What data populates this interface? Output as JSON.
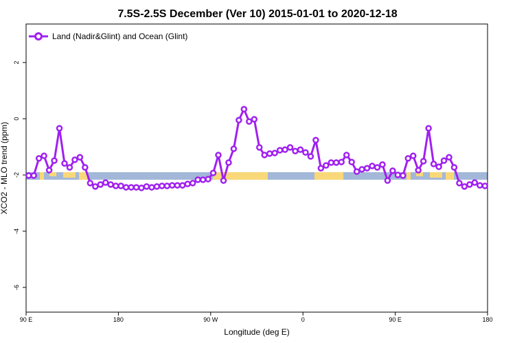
{
  "chart_data": {
    "type": "line",
    "title": "7.5S-2.5S December (Ver 10)   2015-01-01 to 2020-12-18",
    "x_label": "Longitude (deg E)",
    "y_label": "XCO2 - MLO trend (ppm)",
    "xlim": [
      90,
      540
    ],
    "ylim": [
      -6.88,
      3.37
    ],
    "xticks": [
      {
        "value": 90,
        "label": "90 E"
      },
      180,
      {
        "value": 270,
        "label": "90 W"
      },
      {
        "value": 360,
        "label": "0"
      },
      {
        "value": 450,
        "label": "90 E"
      },
      {
        "value": 540,
        "label": "180"
      }
    ],
    "yticks": [
      -6,
      -4,
      -2,
      0,
      2
    ],
    "legend": "top-left",
    "x": [
      92.5,
      97.5,
      102.5,
      107.5,
      112.5,
      117.5,
      122.5,
      127.5,
      132.5,
      137.5,
      142.5,
      147.5,
      152.5,
      157.5,
      162.5,
      167.5,
      172.5,
      177.5,
      182.5,
      187.5,
      192.5,
      197.5,
      202.5,
      207.5,
      212.5,
      217.5,
      222.5,
      227.5,
      232.5,
      237.5,
      242.5,
      247.5,
      252.5,
      257.5,
      262.5,
      267.5,
      272.5,
      277.5,
      282.5,
      287.5,
      292.5,
      297.5,
      302.5,
      307.5,
      312.5,
      317.5,
      322.5,
      327.5,
      332.5,
      337.5,
      342.5,
      347.5,
      352.5,
      357.5,
      362.5,
      367.5,
      372.5,
      377.5,
      382.5,
      387.5,
      392.5,
      397.5,
      402.5,
      407.5,
      412.5,
      417.5,
      422.5,
      427.5,
      432.5,
      437.5,
      442.5,
      447.5,
      452.5,
      457.5,
      462.5,
      467.5,
      472.5,
      477.5,
      482.5,
      487.5,
      492.5,
      497.5,
      502.5,
      507.5,
      512.5,
      517.5,
      522.5,
      527.5,
      532.5,
      537.5
    ],
    "series": [
      {
        "name": "Land (Nadir&Glint) and Ocean (Glint)",
        "color": "#a020f0",
        "values": [
          -2.02,
          -2.02,
          -1.41,
          -1.32,
          -1.83,
          -1.49,
          -0.34,
          -1.59,
          -1.73,
          -1.46,
          -1.37,
          -1.73,
          -2.29,
          -2.41,
          -2.34,
          -2.27,
          -2.34,
          -2.39,
          -2.39,
          -2.44,
          -2.44,
          -2.44,
          -2.46,
          -2.41,
          -2.44,
          -2.41,
          -2.39,
          -2.39,
          -2.37,
          -2.37,
          -2.37,
          -2.32,
          -2.29,
          -2.17,
          -2.17,
          -2.15,
          -1.93,
          -1.29,
          -2.2,
          -1.56,
          -1.07,
          -0.05,
          0.34,
          -0.1,
          -0.02,
          -1.02,
          -1.29,
          -1.24,
          -1.22,
          -1.12,
          -1.1,
          -1.02,
          -1.15,
          -1.1,
          -1.2,
          -1.34,
          -0.76,
          -1.76,
          -1.66,
          -1.56,
          -1.56,
          -1.54,
          -1.29,
          -1.54,
          -1.88,
          -1.8,
          -1.76,
          -1.68,
          -1.73,
          -1.63,
          -2.2,
          -1.85,
          -2,
          -2.02,
          -1.41,
          -1.32,
          -1.83,
          -1.51,
          -0.34,
          -1.61,
          -1.71,
          -1.49,
          -1.37,
          -1.73,
          -2.29,
          -2.41,
          -2.34,
          -2.27,
          -2.37,
          -2.39
        ]
      }
    ]
  }
}
